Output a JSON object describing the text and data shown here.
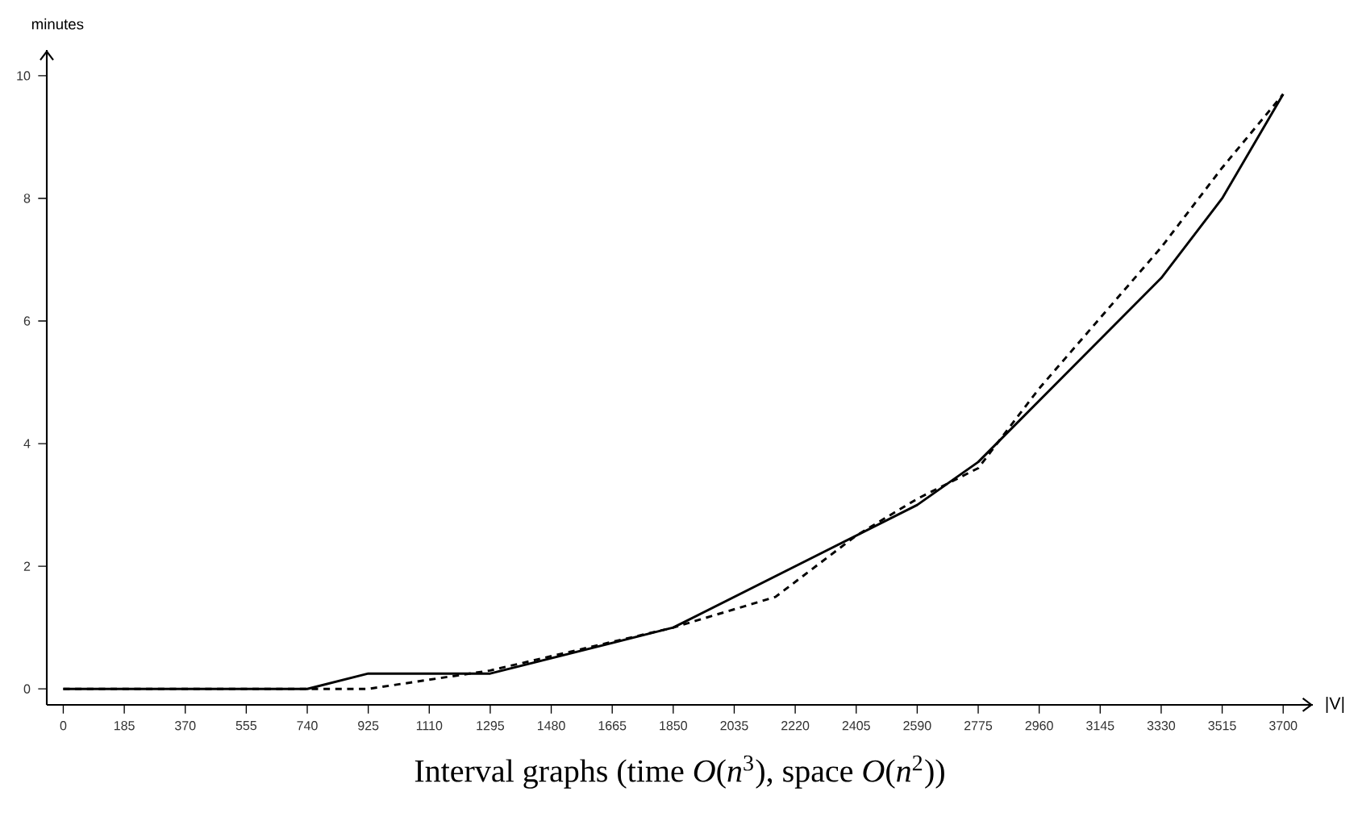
{
  "chart_data": {
    "type": "line",
    "title": "Interval graphs (time *O*(*n*$^{3}$), space *O*(*n*$^{2}$))",
    "xlabel": "|V|",
    "ylabel": "minutes",
    "xlim": [
      -50,
      3790
    ],
    "ylim": [
      -0.26,
      10.42
    ],
    "xticks": [
      0,
      185,
      370,
      555,
      740,
      925,
      1110,
      1295,
      1480,
      1665,
      1850,
      2035,
      2220,
      2405,
      2590,
      2775,
      2960,
      3145,
      3330,
      3515,
      3700
    ],
    "yticks": [
      0,
      2,
      4,
      6,
      8,
      10
    ],
    "series": [
      {
        "color": "#000000",
        "line_style": "solid",
        "x": [
          0,
          740,
          925,
          1295,
          1850,
          2590,
          2775,
          3330,
          3515,
          3700
        ],
        "values": [
          0,
          0,
          0.25,
          0.25,
          1.0,
          3.0,
          3.7,
          6.7,
          8.0,
          9.7
        ]
      },
      {
        "color": "#000000",
        "line_style": "dashed",
        "x": [
          0,
          740,
          925,
          1295,
          1850,
          2160,
          2405,
          2590,
          2775,
          2960,
          3330,
          3515,
          3700
        ],
        "values": [
          0,
          0,
          0,
          0.3,
          1.0,
          1.5,
          2.5,
          3.1,
          3.6,
          4.9,
          7.2,
          8.5,
          9.7
        ]
      }
    ]
  }
}
